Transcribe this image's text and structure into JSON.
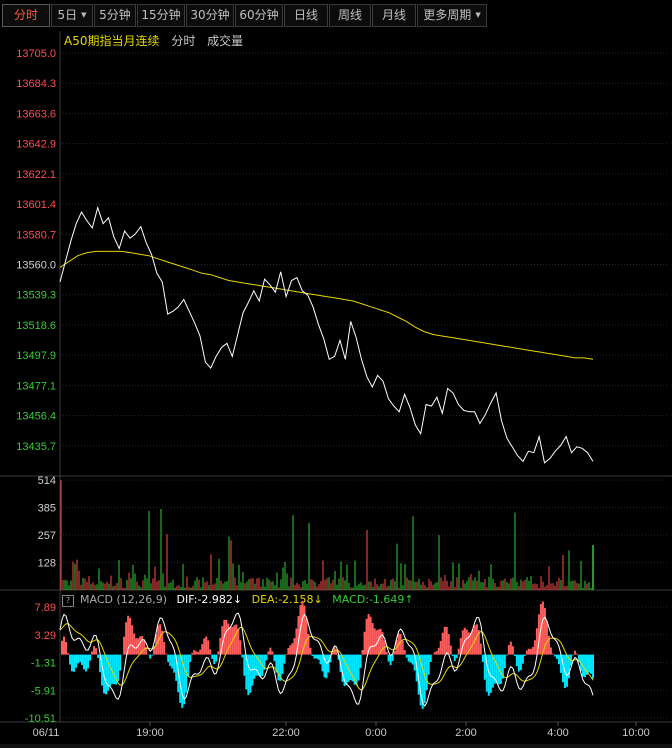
{
  "toolbar": {
    "tabs": [
      {
        "label": "分时",
        "active": true,
        "dropdown": false
      },
      {
        "label": "5日",
        "active": false,
        "dropdown": true
      },
      {
        "label": "5分钟",
        "active": false,
        "dropdown": false
      },
      {
        "label": "15分钟",
        "active": false,
        "dropdown": false
      },
      {
        "label": "30分钟",
        "active": false,
        "dropdown": false
      },
      {
        "label": "60分钟",
        "active": false,
        "dropdown": false
      },
      {
        "label": "日线",
        "active": false,
        "dropdown": false
      },
      {
        "label": "周线",
        "active": false,
        "dropdown": false
      },
      {
        "label": "月线",
        "active": false,
        "dropdown": false
      },
      {
        "label": "更多周期",
        "active": false,
        "dropdown": true
      }
    ]
  },
  "header": {
    "instrument": "A50期指当月连续",
    "mode": "分时",
    "volume_label": "成交量"
  },
  "macd_header": {
    "help_glyph": "?",
    "label": "MACD (12,26,9)",
    "dif": "DIF:-2.982↓",
    "dea": "DEA:-2.158↓",
    "macd": "MACD:-1.649↑"
  },
  "colors": {
    "up": "#ff4c4c",
    "down": "#33cc33",
    "price_line": "#ffffff",
    "avg_line": "#e6d600",
    "dea_line": "#e6d600",
    "macd_up": "#ff5e5e",
    "macd_down": "#00e5ff",
    "grid": "#2a2a2a",
    "axis_text": "#c8c8c8"
  },
  "chart_data": {
    "type": "line",
    "price_axis_ticks": [
      "13705.0",
      "13684.3",
      "13663.6",
      "13642.9",
      "13622.1",
      "13601.4",
      "13580.7",
      "13560.0",
      "13539.3",
      "13518.6",
      "13497.9",
      "13477.1",
      "13456.4",
      "13435.7"
    ],
    "price_axis_range": [
      13415.0,
      13705.0
    ],
    "prev_close": 13560.0,
    "volume_axis_ticks": [
      "514",
      "385",
      "257",
      "128"
    ],
    "volume_range": [
      0,
      514
    ],
    "macd_axis_ticks": [
      "7.89",
      "3.29",
      "-1.31",
      "-5.91",
      "-10.51"
    ],
    "macd_range": [
      -10.51,
      7.89
    ],
    "time_labels": [
      "06/11",
      "19:00",
      "22:00",
      "0:00",
      "2:00",
      "4:00",
      "10:00"
    ],
    "price_series": [
      13548,
      13562,
      13576,
      13588,
      13596,
      13590,
      13585,
      13599,
      13588,
      13592,
      13579,
      13571,
      13583,
      13578,
      13581,
      13586,
      13575,
      13567,
      13554,
      13548,
      13526,
      13528,
      13531,
      13536,
      13528,
      13520,
      13511,
      13493,
      13489,
      13497,
      13503,
      13506,
      13497,
      13512,
      13527,
      13534,
      13542,
      13535,
      13550,
      13546,
      13541,
      13555,
      13538,
      13549,
      13551,
      13542,
      13539,
      13531,
      13519,
      13509,
      13495,
      13497,
      13508,
      13495,
      13521,
      13510,
      13495,
      13483,
      13476,
      13484,
      13480,
      13468,
      13463,
      13459,
      13471,
      13462,
      13450,
      13444,
      13464,
      13463,
      13469,
      13458,
      13475,
      13472,
      13464,
      13460,
      13459,
      13459,
      13451,
      13457,
      13465,
      13472,
      13453,
      13441,
      13435,
      13429,
      13425,
      13432,
      13431,
      13442,
      13424,
      13427,
      13432,
      13436,
      13442,
      13431,
      13435,
      13434,
      13431,
      13425
    ],
    "avg_series": [
      13558,
      13562,
      13566,
      13568,
      13569,
      13569,
      13569,
      13569,
      13568,
      13567,
      13566,
      13564,
      13562,
      13560,
      13558,
      13556,
      13554,
      13553,
      13551,
      13549,
      13548,
      13547,
      13546,
      13545,
      13544,
      13543,
      13542,
      13541,
      13540,
      13539,
      13538,
      13537,
      13536,
      13535,
      13533,
      13531,
      13529,
      13527,
      13524,
      13521,
      13517,
      13514,
      13512,
      13511,
      13510,
      13509,
      13508,
      13507,
      13506,
      13505,
      13504,
      13503,
      13502,
      13501,
      13500,
      13499,
      13498,
      13497,
      13496,
      13496,
      13495
    ]
  }
}
